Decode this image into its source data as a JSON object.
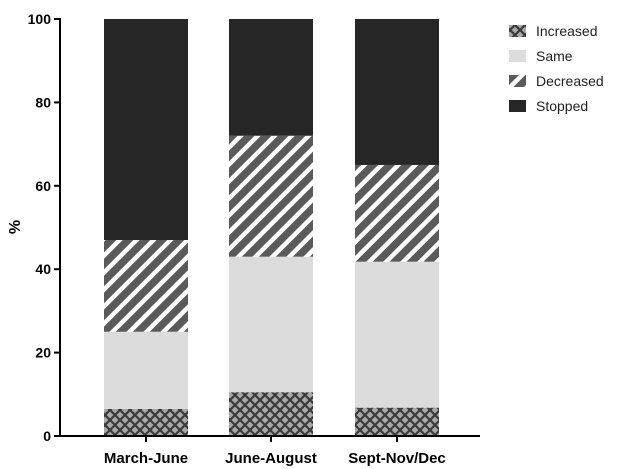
{
  "chart_data": {
    "type": "bar",
    "stacked": true,
    "categories": [
      "March-June",
      "June-August",
      "Sept-Nov/Dec"
    ],
    "series": [
      {
        "name": "Increased",
        "values": [
          6.5,
          10.5,
          6.8
        ],
        "color": "#aaaaaa",
        "pattern": "crosshatch"
      },
      {
        "name": "Same",
        "values": [
          18.5,
          32.5,
          35.0
        ],
        "color": "#dcdcdc",
        "pattern": "solid"
      },
      {
        "name": "Decreased",
        "values": [
          22.0,
          29.0,
          23.2
        ],
        "color": "#555555",
        "pattern": "diagonal-stripes"
      },
      {
        "name": "Stopped",
        "values": [
          53.0,
          28.0,
          35.0
        ],
        "color": "#262626",
        "pattern": "solid"
      }
    ],
    "ylabel": "%",
    "ylim": [
      0,
      100
    ],
    "yticks": [
      0,
      20,
      40,
      60,
      80,
      100
    ],
    "legend_position": "top-right",
    "legend_order": [
      "Increased",
      "Same",
      "Decreased",
      "Stopped"
    ],
    "grid": false
  }
}
